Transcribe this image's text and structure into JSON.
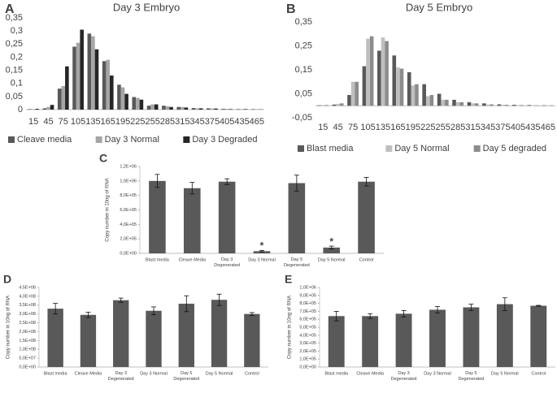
{
  "chart_data": [
    {
      "type": "bar",
      "panel": "A",
      "title": "Day 3 Embryo",
      "categories": [
        "15",
        "45",
        "75",
        "105",
        "135",
        "165",
        "195",
        "225",
        "255",
        "285",
        "315",
        "345",
        "375",
        "405",
        "435",
        "465"
      ],
      "series": [
        {
          "name": "Cleave media",
          "color": "#595959",
          "values": [
            0.002,
            0.005,
            0.08,
            0.24,
            0.29,
            0.185,
            0.095,
            0.048,
            0.015,
            0.015,
            0.01,
            0.006,
            0.005,
            0.003,
            0.002,
            0.002
          ]
        },
        {
          "name": "Day 3 Normal",
          "color": "#a6a6a6",
          "values": [
            0.002,
            0.01,
            0.09,
            0.255,
            0.28,
            0.19,
            0.085,
            0.045,
            0.02,
            0.013,
            0.01,
            0.005,
            0.004,
            0.003,
            0.002,
            0.001
          ]
        },
        {
          "name": "Day 3 Degraded",
          "color": "#262626",
          "values": [
            0.003,
            0.018,
            0.165,
            0.305,
            0.23,
            0.13,
            0.06,
            0.038,
            0.02,
            0.01,
            0.008,
            0.005,
            0.004,
            0.002,
            0.002,
            0.001
          ]
        }
      ],
      "ylim": [
        0,
        0.35
      ],
      "yticks": [
        0,
        {
          "value": 0.05,
          "label": "0,05"
        },
        {
          "value": 0.1,
          "label": "0,1"
        },
        {
          "value": 0.15,
          "label": "0,15"
        },
        {
          "value": 0.2,
          "label": "0,2"
        },
        {
          "value": 0.25,
          "label": "0,25"
        },
        {
          "value": 0.3,
          "label": "0,3"
        },
        {
          "value": 0.35,
          "label": "0,35"
        }
      ],
      "legend": "bottom"
    },
    {
      "type": "bar",
      "panel": "B",
      "title": "Day 5 Embryo",
      "categories": [
        "15",
        "45",
        "75",
        "105",
        "135",
        "165",
        "195",
        "225",
        "255",
        "285",
        "315",
        "345",
        "375",
        "405",
        "435",
        "465"
      ],
      "series": [
        {
          "name": "Blast media",
          "color": "#595959",
          "values": [
            0.002,
            0.005,
            0.045,
            0.165,
            0.23,
            0.21,
            0.14,
            0.09,
            0.05,
            0.025,
            0.015,
            0.01,
            0.006,
            0.004,
            0.003,
            0.002
          ]
        },
        {
          "name": "Day 5 Normal",
          "color": "#bfbfbf",
          "values": [
            0.003,
            0.008,
            0.1,
            0.28,
            0.285,
            0.16,
            0.085,
            0.04,
            0.025,
            0.015,
            0.01,
            0.005,
            0.004,
            0.003,
            0.002,
            0.002
          ]
        },
        {
          "name": "Day 5 degraded",
          "color": "#8c8c8c",
          "values": [
            0.003,
            0.01,
            0.1,
            0.29,
            0.27,
            0.155,
            0.09,
            0.045,
            0.025,
            0.015,
            0.01,
            0.006,
            0.004,
            0.003,
            0.002,
            0.002
          ]
        }
      ],
      "ylim": [
        -0.05,
        0.35
      ],
      "yticks": [
        {
          "value": -0.05,
          "label": "-0,05"
        },
        {
          "value": 0.05,
          "label": "0,05"
        },
        {
          "value": 0.15,
          "label": "0,15"
        },
        {
          "value": 0.25,
          "label": "0,25"
        },
        {
          "value": 0.35,
          "label": "0,35"
        }
      ],
      "legend": "bottom"
    },
    {
      "type": "bar",
      "panel": "C",
      "y_label": "Copy number in 10ng of RNA",
      "categories": [
        "Blast media",
        "Cleave Media",
        "Day 3 Degenerated",
        "Day 3 Normal",
        "Day 5 Degenerated",
        "Day 5 Normal",
        "Control"
      ],
      "values": [
        1000000,
        900000,
        990000,
        30000,
        970000,
        80000,
        990000
      ],
      "errors": [
        90000,
        80000,
        40000,
        10000,
        110000,
        20000,
        60000
      ],
      "color": "#595959",
      "annotations": [
        {
          "text": "*",
          "category": "Day 3 Normal"
        },
        {
          "text": "*",
          "category": "Day 5 Normal"
        }
      ],
      "ylim": [
        0,
        1200000
      ],
      "yticks": [
        {
          "value": 0,
          "label": "0,0E+00"
        },
        {
          "value": 200000,
          "label": "2,0E+05"
        },
        {
          "value": 400000,
          "label": "4,0E+05"
        },
        {
          "value": 600000,
          "label": "6,0E+05"
        },
        {
          "value": 800000,
          "label": "8,0E+05"
        },
        {
          "value": 1000000,
          "label": "1,0E+06"
        },
        {
          "value": 1200000,
          "label": "1,2E+06"
        }
      ]
    },
    {
      "type": "bar",
      "panel": "D",
      "y_label": "Copy number in 10ng of RNA",
      "categories": [
        "Blast media",
        "Cleave Media",
        "Day 3 Degenerated",
        "Day 3 Normal",
        "Day 5 Degenerated",
        "Day 5 Normal",
        "Control"
      ],
      "values": [
        330000000,
        295000000,
        378000000,
        318000000,
        358000000,
        380000000,
        300000000
      ],
      "errors": [
        30000000,
        15000000,
        12000000,
        22000000,
        45000000,
        32000000,
        8000000
      ],
      "color": "#595959",
      "ylim": [
        0,
        450000000
      ],
      "yticks": [
        {
          "value": 0,
          "label": "0,0E+00"
        },
        {
          "value": 50000000,
          "label": "5,0E+07"
        },
        {
          "value": 100000000,
          "label": "1,0E+08"
        },
        {
          "value": 150000000,
          "label": "1,5E+08"
        },
        {
          "value": 200000000,
          "label": "2,0E+08"
        },
        {
          "value": 250000000,
          "label": "2,5E+08"
        },
        {
          "value": 300000000,
          "label": "3,0E+08"
        },
        {
          "value": 350000000,
          "label": "3,5E+08"
        },
        {
          "value": 400000000,
          "label": "4,0E+08"
        },
        {
          "value": 450000000,
          "label": "4,5E+08"
        }
      ]
    },
    {
      "type": "bar",
      "panel": "E",
      "y_label": "Copy number in 10ng of RNA",
      "categories": [
        "Blast media",
        "Cleave Media",
        "Day 3 Degenerated",
        "Day 3 Normal",
        "Day 5 Degenerated",
        "Day 5 Normal",
        "Control"
      ],
      "values": [
        640000,
        640000,
        670000,
        720000,
        750000,
        790000,
        770000
      ],
      "errors": [
        60000,
        30000,
        40000,
        40000,
        40000,
        80000,
        5000
      ],
      "color": "#595959",
      "ylim": [
        0,
        1000000
      ],
      "yticks": [
        {
          "value": 0,
          "label": "0,0E+00"
        },
        {
          "value": 100000,
          "label": "1,0E+05"
        },
        {
          "value": 200000,
          "label": "2,0E+05"
        },
        {
          "value": 300000,
          "label": "3,0E+05"
        },
        {
          "value": 400000,
          "label": "4,0E+05"
        },
        {
          "value": 500000,
          "label": "5,0E+05"
        },
        {
          "value": 600000,
          "label": "6,0E+05"
        },
        {
          "value": 700000,
          "label": "7,0E+05"
        },
        {
          "value": 800000,
          "label": "8,0E+05"
        },
        {
          "value": 900000,
          "label": "9,0E+05"
        },
        {
          "value": 1000000,
          "label": "1,0E+06"
        }
      ]
    }
  ]
}
